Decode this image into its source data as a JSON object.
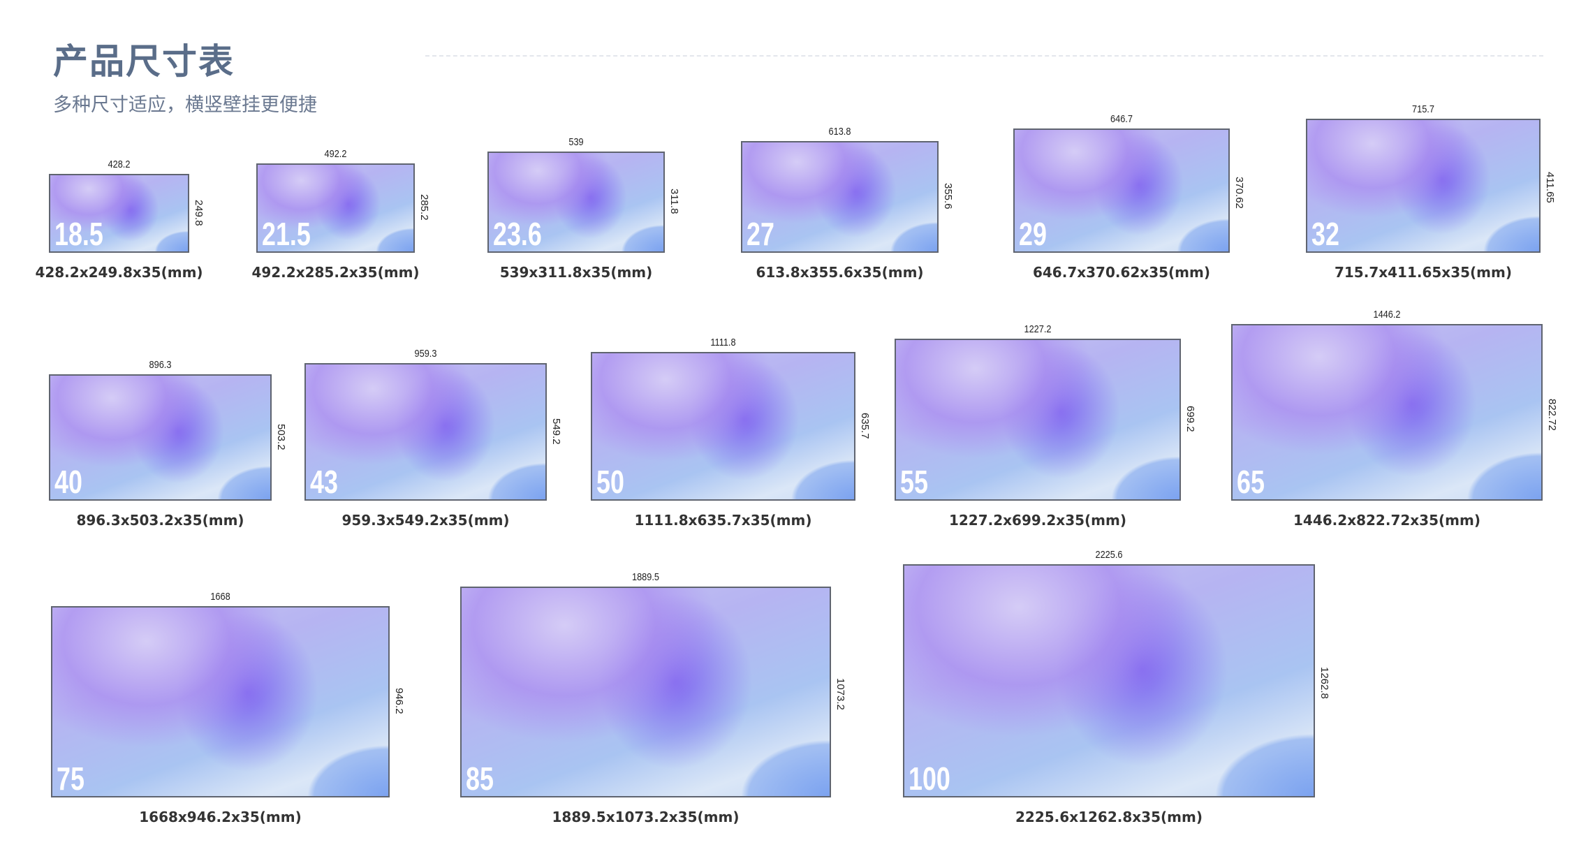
{
  "header": {
    "title": "产品尺寸表",
    "subtitle": "多种尺寸适应，横竖壁挂更便捷"
  },
  "products": [
    {
      "size": "18.5",
      "width": "428.2",
      "height": "249.8",
      "caption": "428.2x249.8x35(mm)"
    },
    {
      "size": "21.5",
      "width": "492.2",
      "height": "285.2",
      "caption": "492.2x285.2x35(mm)"
    },
    {
      "size": "23.6",
      "width": "539",
      "height": "311.8",
      "caption": "539x311.8x35(mm)"
    },
    {
      "size": "27",
      "width": "613.8",
      "height": "355.6",
      "caption": "613.8x355.6x35(mm)"
    },
    {
      "size": "29",
      "width": "646.7",
      "height": "370.62",
      "caption": "646.7x370.62x35(mm)"
    },
    {
      "size": "32",
      "width": "715.7",
      "height": "411.65",
      "caption": "715.7x411.65x35(mm)"
    },
    {
      "size": "40",
      "width": "896.3",
      "height": "503.2",
      "caption": "896.3x503.2x35(mm)"
    },
    {
      "size": "43",
      "width": "959.3",
      "height": "549.2",
      "caption": "959.3x549.2x35(mm)"
    },
    {
      "size": "50",
      "width": "1111.8",
      "height": "635.7",
      "caption": "1111.8x635.7x35(mm)"
    },
    {
      "size": "55",
      "width": "1227.2",
      "height": "699.2",
      "caption": "1227.2x699.2x35(mm)"
    },
    {
      "size": "65",
      "width": "1446.2",
      "height": "822.72",
      "caption": "1446.2x822.72x35(mm)"
    },
    {
      "size": "75",
      "width": "1668",
      "height": "946.2",
      "caption": "1668x946.2x35(mm)"
    },
    {
      "size": "85",
      "width": "1889.5",
      "height": "1073.2",
      "caption": "1889.5x1073.2x35(mm)"
    },
    {
      "size": "100",
      "width": "2225.6",
      "height": "1262.8",
      "caption": "2225.6x1262.8x35(mm)"
    }
  ]
}
